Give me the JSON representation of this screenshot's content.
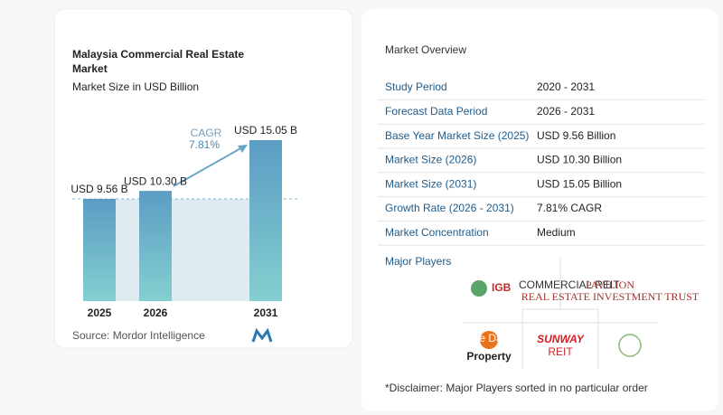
{
  "chart_data": {
    "type": "bar",
    "title": "Malaysia Commercial Real Estate Market",
    "subtitle": "Market Size in USD Billion",
    "categories": [
      "2025",
      "2026",
      "2031"
    ],
    "values": [
      9.56,
      10.3,
      15.05
    ],
    "value_labels": [
      "USD 9.56 B",
      "USD 10.30 B",
      "USD 15.05 B"
    ],
    "color": "#5b9cc4",
    "annotation_label": "CAGR",
    "annotation_value": "7.81%",
    "source": "Source:  Mordor Intelligence"
  },
  "overview": {
    "title": "Market Overview",
    "rows": [
      [
        "Study Period",
        "2020 - 2031"
      ],
      [
        "Forecast Data Period",
        "2026 - 2031"
      ],
      [
        "Base Year Market Size (2025)",
        "USD 9.56 Billion"
      ],
      [
        "Market Size (2026)",
        "USD 10.30 Billion"
      ],
      [
        "Market Size (2031)",
        "USD 15.05 Billion"
      ],
      [
        "Growth Rate (2026 - 2031)",
        "7.81% CAGR"
      ],
      [
        "Market Concentration",
        "Medium"
      ]
    ]
  },
  "players": {
    "title": "Major Players",
    "igb": "IGB",
    "igb_sub": "COMMERCIAL REIT",
    "pavilion": "PAVILION",
    "pavilion_sub": "REAL ESTATE INVESTMENT TRUST",
    "sime": "Sime Darby",
    "sime_sub": "Property",
    "sunway": "SUNWAY",
    "sunway_sub": "REIT"
  },
  "disclaimer": "*Disclaimer: Major Players sorted in no particular order"
}
